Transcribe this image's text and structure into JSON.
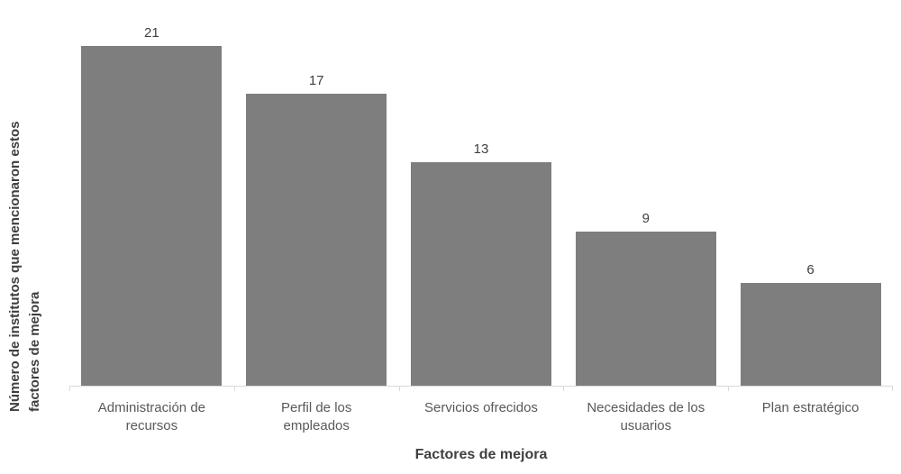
{
  "chart_data": {
    "type": "bar",
    "title": "",
    "categories": [
      "Administración de recursos",
      "Perfil de los empleados",
      "Servicios ofrecidos",
      "Necesidades de los usuarios",
      "Plan estratégico"
    ],
    "values": [
      21,
      17,
      13,
      9,
      6
    ],
    "data_labels": [
      "21",
      "17",
      "13",
      "9",
      "6"
    ],
    "xlabel": "Factores de mejora",
    "ylabel": "Número de institutos que mencionaron estos factores de mejora",
    "ylabel_lines": [
      "Número de institutos que mencionaron estos",
      "factores de mejora"
    ],
    "ylim": [
      0,
      21
    ],
    "grid": false,
    "legend": false,
    "y_axis_ticks_visible": false,
    "colors": {
      "bar": "#7E7E7E",
      "axis_line": "#D9D9D9",
      "data_label_text": "#404040",
      "category_text": "#595959",
      "axis_title_text": "#3F3F3F",
      "background": "#FFFFFF"
    }
  }
}
